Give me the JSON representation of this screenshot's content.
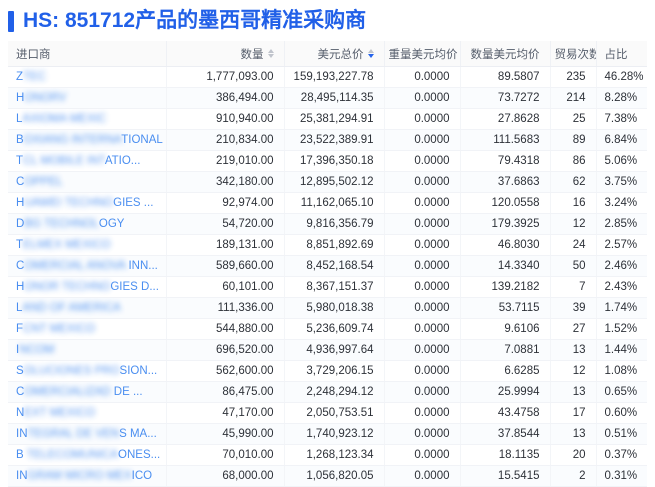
{
  "title": "HS: 851712产品的墨西哥精准采购商",
  "colors": {
    "accent": "#2160e8",
    "link_blue": "#4a8ef0",
    "sort_active": "#2563eb",
    "sort_inactive": "#c0c4cc",
    "header_bg": "#fafafa",
    "row_border": "#f1f3f7"
  },
  "table": {
    "columns": [
      {
        "key": "importer",
        "label": "进口商",
        "align": "left",
        "sortable": false,
        "sort": null
      },
      {
        "key": "qty",
        "label": "数量",
        "align": "right",
        "sortable": true,
        "sort": "none"
      },
      {
        "key": "usd_total",
        "label": "美元总价",
        "align": "right",
        "sortable": true,
        "sort": "desc"
      },
      {
        "key": "weight_unit_price",
        "label": "重量美元均价",
        "align": "right",
        "sortable": false,
        "sort": null
      },
      {
        "key": "qty_unit_price",
        "label": "数量美元均价",
        "align": "right",
        "sortable": false,
        "sort": null
      },
      {
        "key": "trade_count",
        "label": "贸易次数",
        "align": "right",
        "sortable": true,
        "sort": "none"
      },
      {
        "key": "share",
        "label": "占比",
        "align": "left",
        "sortable": false,
        "sort": null
      }
    ],
    "rows": [
      {
        "importer": [
          {
            "t": "Z",
            "redacted": false
          },
          {
            "t": "TEC",
            "redacted": true
          }
        ],
        "qty": "1,777,093.00",
        "usd_total": "159,193,227.78",
        "weight_unit_price": "0.0000",
        "qty_unit_price": "89.5807",
        "trade_count": "235",
        "share": "46.28%"
      },
      {
        "importer": [
          {
            "t": "H",
            "redacted": false
          },
          {
            "t": "ONORV",
            "redacted": true
          }
        ],
        "qty": "386,494.00",
        "usd_total": "28,495,114.35",
        "weight_unit_price": "0.0000",
        "qty_unit_price": "73.7272",
        "trade_count": "214",
        "share": "8.28%"
      },
      {
        "importer": [
          {
            "t": "L",
            "redacted": false
          },
          {
            "t": "AXIOMA MEXIC",
            "redacted": true
          }
        ],
        "qty": "910,940.00",
        "usd_total": "25,381,294.91",
        "weight_unit_price": "0.0000",
        "qty_unit_price": "27.8628",
        "trade_count": "25",
        "share": "7.38%"
      },
      {
        "importer": [
          {
            "t": "B",
            "redacted": false
          },
          {
            "t": "OXIANG INTERNA",
            "redacted": true
          },
          {
            "t": "TIONAL",
            "redacted": false
          }
        ],
        "qty": "210,834.00",
        "usd_total": "23,522,389.91",
        "weight_unit_price": "0.0000",
        "qty_unit_price": "111.5683",
        "trade_count": "89",
        "share": "6.84%"
      },
      {
        "importer": [
          {
            "t": "T",
            "redacted": false
          },
          {
            "t": "CL MOBILE INT",
            "redacted": true
          },
          {
            "t": "ATIO...",
            "redacted": false
          }
        ],
        "qty": "219,010.00",
        "usd_total": "17,396,350.18",
        "weight_unit_price": "0.0000",
        "qty_unit_price": "79.4318",
        "trade_count": "86",
        "share": "5.06%"
      },
      {
        "importer": [
          {
            "t": "C",
            "redacted": false
          },
          {
            "t": "OPPEL",
            "redacted": true
          }
        ],
        "qty": "342,180.00",
        "usd_total": "12,895,502.12",
        "weight_unit_price": "0.0000",
        "qty_unit_price": "37.6863",
        "trade_count": "62",
        "share": "3.75%"
      },
      {
        "importer": [
          {
            "t": "H",
            "redacted": false
          },
          {
            "t": "UAWEI TECHNO",
            "redacted": true
          },
          {
            "t": "GIES ...",
            "redacted": false
          }
        ],
        "qty": "92,974.00",
        "usd_total": "11,162,065.10",
        "weight_unit_price": "0.0000",
        "qty_unit_price": "120.0558",
        "trade_count": "16",
        "share": "3.24%"
      },
      {
        "importer": [
          {
            "t": "D",
            "redacted": false
          },
          {
            "t": "BG TECHNOL",
            "redacted": true
          },
          {
            "t": "OGY",
            "redacted": false
          }
        ],
        "qty": "54,720.00",
        "usd_total": "9,816,356.79",
        "weight_unit_price": "0.0000",
        "qty_unit_price": "179.3925",
        "trade_count": "12",
        "share": "2.85%"
      },
      {
        "importer": [
          {
            "t": "T",
            "redacted": false
          },
          {
            "t": "ELMEX MEXICO",
            "redacted": true
          }
        ],
        "qty": "189,131.00",
        "usd_total": "8,851,892.69",
        "weight_unit_price": "0.0000",
        "qty_unit_price": "46.8030",
        "trade_count": "24",
        "share": "2.57%"
      },
      {
        "importer": [
          {
            "t": "C",
            "redacted": false
          },
          {
            "t": "OMERCIAL ANOVA",
            "redacted": true
          },
          {
            "t": " INN...",
            "redacted": false
          }
        ],
        "qty": "589,660.00",
        "usd_total": "8,452,168.54",
        "weight_unit_price": "0.0000",
        "qty_unit_price": "14.3340",
        "trade_count": "50",
        "share": "2.46%"
      },
      {
        "importer": [
          {
            "t": "H",
            "redacted": false
          },
          {
            "t": "ONOR TECHNO",
            "redacted": true
          },
          {
            "t": "GIES D...",
            "redacted": false
          }
        ],
        "qty": "60,101.00",
        "usd_total": "8,367,151.37",
        "weight_unit_price": "0.0000",
        "qty_unit_price": "139.2182",
        "trade_count": "7",
        "share": "2.43%"
      },
      {
        "importer": [
          {
            "t": "L",
            "redacted": false
          },
          {
            "t": "AND OF AMERICA",
            "redacted": true
          }
        ],
        "qty": "111,336.00",
        "usd_total": "5,980,018.38",
        "weight_unit_price": "0.0000",
        "qty_unit_price": "53.7115",
        "trade_count": "39",
        "share": "1.74%"
      },
      {
        "importer": [
          {
            "t": "F",
            "redacted": false
          },
          {
            "t": "CNT MEXICO",
            "redacted": true
          }
        ],
        "qty": "544,880.00",
        "usd_total": "5,236,609.74",
        "weight_unit_price": "0.0000",
        "qty_unit_price": "9.6106",
        "trade_count": "27",
        "share": "1.52%"
      },
      {
        "importer": [
          {
            "t": "I",
            "redacted": false
          },
          {
            "t": "NCOM",
            "redacted": true
          }
        ],
        "qty": "696,520.00",
        "usd_total": "4,936,997.64",
        "weight_unit_price": "0.0000",
        "qty_unit_price": "7.0881",
        "trade_count": "13",
        "share": "1.44%"
      },
      {
        "importer": [
          {
            "t": "S",
            "redacted": false
          },
          {
            "t": "OLUCIONES PRO",
            "redacted": true
          },
          {
            "t": "SION...",
            "redacted": false
          }
        ],
        "qty": "562,600.00",
        "usd_total": "3,729,206.15",
        "weight_unit_price": "0.0000",
        "qty_unit_price": "6.6285",
        "trade_count": "12",
        "share": "1.08%"
      },
      {
        "importer": [
          {
            "t": "C",
            "redacted": false
          },
          {
            "t": "OMERCIALIZAD",
            "redacted": true
          },
          {
            "t": " DE ...",
            "redacted": false
          }
        ],
        "qty": "86,475.00",
        "usd_total": "2,248,294.12",
        "weight_unit_price": "0.0000",
        "qty_unit_price": "25.9994",
        "trade_count": "13",
        "share": "0.65%"
      },
      {
        "importer": [
          {
            "t": "N",
            "redacted": false
          },
          {
            "t": "EXT MEXICO",
            "redacted": true
          }
        ],
        "qty": "47,170.00",
        "usd_total": "2,050,753.51",
        "weight_unit_price": "0.0000",
        "qty_unit_price": "43.4758",
        "trade_count": "17",
        "share": "0.60%"
      },
      {
        "importer": [
          {
            "t": "IN",
            "redacted": false
          },
          {
            "t": "TEGRAL DE VEN",
            "redacted": true
          },
          {
            "t": "S MA...",
            "redacted": false
          }
        ],
        "qty": "45,990.00",
        "usd_total": "1,740,923.12",
        "weight_unit_price": "0.0000",
        "qty_unit_price": "37.8544",
        "trade_count": "13",
        "share": "0.51%"
      },
      {
        "importer": [
          {
            "t": "B",
            "redacted": false
          },
          {
            "t": " TELECOMUNICA",
            "redacted": true
          },
          {
            "t": "ONES...",
            "redacted": false
          }
        ],
        "qty": "70,010.00",
        "usd_total": "1,268,123.34",
        "weight_unit_price": "0.0000",
        "qty_unit_price": "18.1135",
        "trade_count": "20",
        "share": "0.37%"
      },
      {
        "importer": [
          {
            "t": "IN",
            "redacted": false
          },
          {
            "t": "GRAM MICRO MEX",
            "redacted": true
          },
          {
            "t": "ICO",
            "redacted": false
          }
        ],
        "qty": "68,000.00",
        "usd_total": "1,056,820.05",
        "weight_unit_price": "0.0000",
        "qty_unit_price": "15.5415",
        "trade_count": "2",
        "share": "0.31%"
      }
    ]
  }
}
